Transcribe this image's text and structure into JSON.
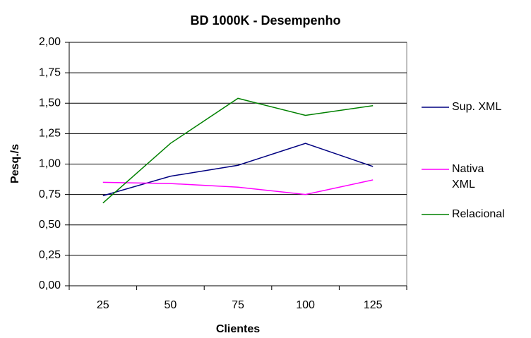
{
  "chart_data": {
    "type": "line",
    "title": "BD 1000K - Desempenho",
    "x_label": "Clientes",
    "y_label": "Pesq./s",
    "categories": [
      "25",
      "50",
      "75",
      "100",
      "125"
    ],
    "series": [
      {
        "name": "Sup. XML",
        "color": "#000080",
        "values": [
          0.74,
          0.9,
          0.99,
          1.17,
          0.98
        ]
      },
      {
        "name": "Nativa XML",
        "color": "#ff00ff",
        "values": [
          0.85,
          0.84,
          0.81,
          0.75,
          0.87
        ]
      },
      {
        "name": "Relacional",
        "color": "#008000",
        "values": [
          0.68,
          1.17,
          1.54,
          1.4,
          1.48
        ]
      }
    ],
    "ylim": [
      0,
      2
    ],
    "yticks": [
      {
        "value": 0,
        "label": "0,00"
      },
      {
        "value": 0.25,
        "label": "0,25"
      },
      {
        "value": 0.5,
        "label": "0,50"
      },
      {
        "value": 0.75,
        "label": "0,75"
      },
      {
        "value": 1,
        "label": "1,00"
      },
      {
        "value": 1.25,
        "label": "1,25"
      },
      {
        "value": 1.5,
        "label": "1,50"
      },
      {
        "value": 1.75,
        "label": "1,75"
      },
      {
        "value": 2,
        "label": "2,00"
      }
    ],
    "grid": true,
    "legend": "right"
  }
}
